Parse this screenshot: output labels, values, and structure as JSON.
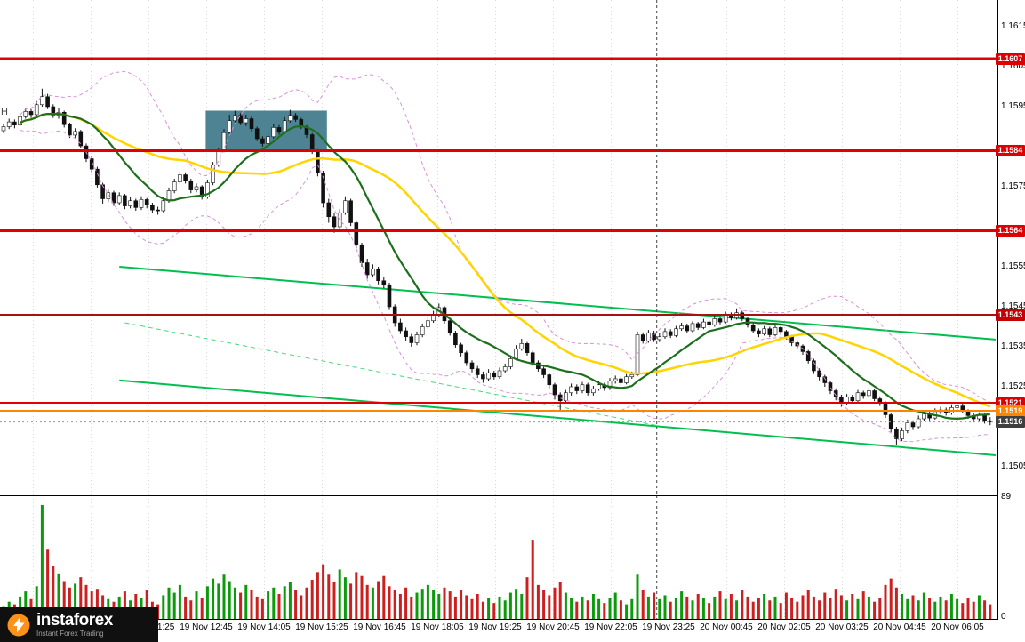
{
  "meta": {
    "corner_text": "Н"
  },
  "branding": {
    "name": "instaforex",
    "tagline": "Instant Forex Trading"
  },
  "axis": {
    "price_labels": [
      "1.1615",
      "1.1605",
      "1.1595",
      "1.1575",
      "1.1555",
      "1.1545",
      "1.1535",
      "1.1525",
      "1.1505"
    ],
    "time_labels": [
      "19 Nov 11:25",
      "19 Nov 12:45",
      "19 Nov 14:05",
      "19 Nov 15:25",
      "19 Nov 16:45",
      "19 Nov 18:05",
      "19 Nov 19:25",
      "19 Nov 20:45",
      "19 Nov 22:05",
      "19 Nov 23:25",
      "20 Nov 00:45",
      "20 Nov 02:05",
      "20 Nov 03:25",
      "20 Nov 04:45",
      "20 Nov 06:05"
    ],
    "volume_max": "89",
    "volume_min": "0"
  },
  "levels": [
    {
      "price": 1.1607,
      "label": "1.1607",
      "line_color": "#e00000",
      "line_width": 3,
      "badge_bg": "#dd0000"
    },
    {
      "price": 1.1584,
      "label": "1.1584",
      "line_color": "#e00000",
      "line_width": 3,
      "badge_bg": "#dd0000"
    },
    {
      "price": 1.1564,
      "label": "1.1564",
      "line_color": "#e00000",
      "line_width": 3,
      "badge_bg": "#dd0000"
    },
    {
      "price": 1.1543,
      "label": "1.1543",
      "line_color": "#a51212",
      "line_width": 2,
      "badge_bg": "#c40000"
    },
    {
      "price": 1.1521,
      "label": "1.1521",
      "line_color": "#e00000",
      "line_width": 2,
      "badge_bg": "#dd0000"
    },
    {
      "price": 1.1519,
      "label": "1.1519",
      "line_color": "#ff8400",
      "line_width": 2,
      "badge_bg": "#ff8400"
    },
    {
      "price": 1.15162,
      "label": "1.1516",
      "line_color": "#999999",
      "line_width": 1,
      "line_dash": "2,3",
      "badge_bg": "#3f3f3f",
      "role": "current-price-badge"
    }
  ],
  "chart_data": {
    "type": "candlestick",
    "price_base": 1.15,
    "pip_size": 0.0001,
    "y_visible_range": [
      1.1498,
      1.1622
    ],
    "day_separator_index": 118.5,
    "ohlc": [
      [
        89,
        90.8,
        88.4,
        90
      ],
      [
        90,
        92,
        89.4,
        91.2
      ],
      [
        91.2,
        91.8,
        89.6,
        90.4
      ],
      [
        90.4,
        93.2,
        90,
        92.5
      ],
      [
        92.5,
        94.6,
        92,
        93.8
      ],
      [
        93.8,
        94.4,
        92.2,
        93
      ],
      [
        93,
        96.4,
        92.6,
        95.5
      ],
      [
        95.5,
        99.5,
        95,
        97.5
      ],
      [
        97.5,
        98.2,
        94.4,
        95
      ],
      [
        95,
        95.6,
        92.2,
        92.8
      ],
      [
        92.8,
        94.6,
        92,
        93.6
      ],
      [
        93.6,
        94,
        89.8,
        90.5
      ],
      [
        90.5,
        91,
        87.2,
        87.9
      ],
      [
        87.9,
        89.6,
        87,
        88.8
      ],
      [
        88.8,
        89.2,
        84.6,
        85.2
      ],
      [
        85.2,
        85.8,
        81.2,
        82
      ],
      [
        82,
        82.6,
        78.6,
        79.4
      ],
      [
        79.4,
        80,
        74.8,
        75.5
      ],
      [
        75.5,
        76,
        70.8,
        72
      ],
      [
        72,
        74.4,
        71.2,
        73.5
      ],
      [
        73.5,
        74,
        70.2,
        71
      ],
      [
        71,
        73.6,
        70.4,
        72.8
      ],
      [
        72.8,
        73.2,
        69.4,
        70.2
      ],
      [
        70.2,
        72.4,
        69.6,
        71.5
      ],
      [
        71.5,
        72,
        69,
        69.8
      ],
      [
        69.8,
        72.6,
        69.2,
        71.8
      ],
      [
        71.8,
        72.2,
        69.6,
        70.4
      ],
      [
        70.4,
        71,
        68.4,
        69.2
      ],
      [
        69.2,
        70,
        68,
        69
      ],
      [
        69,
        72.4,
        68.6,
        71.5
      ],
      [
        71.5,
        74.8,
        71,
        74
      ],
      [
        74,
        77,
        73.4,
        76.2
      ],
      [
        76.2,
        78.8,
        75.6,
        78
      ],
      [
        78,
        78.6,
        75.8,
        76.5
      ],
      [
        76.5,
        77,
        73.4,
        74.2
      ],
      [
        74.2,
        75.8,
        73.6,
        75
      ],
      [
        75,
        75.4,
        71.8,
        72.5
      ],
      [
        72.5,
        76.8,
        72,
        76
      ],
      [
        76,
        81.2,
        75.4,
        80.5
      ],
      [
        80.5,
        84.8,
        80,
        84
      ],
      [
        84,
        89.4,
        83.6,
        88.5
      ],
      [
        88.5,
        93,
        88,
        91.5
      ],
      [
        91.5,
        94,
        91,
        92.8
      ],
      [
        92.8,
        93.4,
        90.4,
        91
      ],
      [
        91,
        93,
        90.2,
        92
      ],
      [
        92,
        92.6,
        88.8,
        89.5
      ],
      [
        89.5,
        90,
        86.4,
        87
      ],
      [
        87,
        87.6,
        85,
        85.8
      ],
      [
        85.8,
        88.4,
        85.2,
        87.5
      ],
      [
        87.5,
        90.6,
        87,
        89.8
      ],
      [
        89.8,
        90.4,
        88,
        88.6
      ],
      [
        88.6,
        92.4,
        88.2,
        91.5
      ],
      [
        91.5,
        94.2,
        91,
        92.8
      ],
      [
        92.8,
        93.4,
        91.2,
        91.8
      ],
      [
        91.8,
        92.2,
        89.4,
        90
      ],
      [
        90,
        90.4,
        87.2,
        88
      ],
      [
        88,
        88.4,
        83.2,
        84
      ],
      [
        84,
        84.4,
        77.6,
        78.5
      ],
      [
        78.5,
        79,
        69.8,
        71
      ],
      [
        71,
        72,
        66,
        67.5
      ],
      [
        67.5,
        68.5,
        63.5,
        65
      ],
      [
        65,
        69.4,
        64.4,
        68.5
      ],
      [
        68.5,
        72.6,
        68,
        71.5
      ],
      [
        71.5,
        72,
        65.2,
        66
      ],
      [
        66,
        66.6,
        59.6,
        60.5
      ],
      [
        60.5,
        61,
        55,
        56
      ],
      [
        56,
        57,
        52,
        53
      ],
      [
        53,
        55.6,
        52.4,
        54.5
      ],
      [
        54.5,
        55,
        50.6,
        51.5
      ],
      [
        51.5,
        52.4,
        49.6,
        50.5
      ],
      [
        50.5,
        51,
        44.2,
        45
      ],
      [
        45,
        45.6,
        40,
        41
      ],
      [
        41,
        42,
        38.2,
        39
      ],
      [
        39,
        39.8,
        36.4,
        37.5
      ],
      [
        37.5,
        38.2,
        35,
        36
      ],
      [
        36,
        38.8,
        35.4,
        38
      ],
      [
        38,
        40.8,
        37.4,
        40
      ],
      [
        40,
        42.4,
        39.4,
        41.5
      ],
      [
        41.5,
        44,
        41,
        43
      ],
      [
        43,
        45.8,
        42.4,
        44.8
      ],
      [
        44.8,
        45.2,
        40.8,
        41.5
      ],
      [
        41.5,
        42,
        37.8,
        38.5
      ],
      [
        38.5,
        39,
        34.8,
        35.5
      ],
      [
        35.5,
        36,
        32.6,
        33.5
      ],
      [
        33.5,
        34,
        30.2,
        31
      ],
      [
        31,
        31.6,
        28.6,
        29.5
      ],
      [
        29.5,
        30.2,
        27.2,
        28
      ],
      [
        28,
        28.8,
        26,
        27
      ],
      [
        27,
        29.4,
        26.4,
        28.5
      ],
      [
        28.5,
        29,
        26.8,
        27.5
      ],
      [
        27.5,
        29.8,
        27,
        29
      ],
      [
        29,
        30.8,
        28.4,
        30
      ],
      [
        30,
        32.8,
        29.4,
        32
      ],
      [
        32,
        35.4,
        31.6,
        34.5
      ],
      [
        34.5,
        37,
        34,
        35.8
      ],
      [
        35.8,
        36.2,
        32.8,
        33.5
      ],
      [
        33.5,
        34,
        30.2,
        31
      ],
      [
        31,
        31.6,
        28.8,
        29.5
      ],
      [
        29.5,
        30,
        27.2,
        28
      ],
      [
        28,
        28.4,
        24.6,
        25.5
      ],
      [
        25.5,
        26,
        21.8,
        23
      ],
      [
        23,
        23.6,
        19.2,
        21.5
      ],
      [
        21.5,
        24.2,
        21,
        23.5
      ],
      [
        23.5,
        25.8,
        22.8,
        25
      ],
      [
        25,
        25.6,
        23.2,
        24
      ],
      [
        24,
        26.2,
        23.4,
        25.5
      ],
      [
        25.5,
        26,
        22.8,
        23.5
      ],
      [
        23.5,
        25.2,
        22.8,
        24.5
      ],
      [
        24.5,
        26.4,
        24,
        25.5
      ],
      [
        25.5,
        26,
        24,
        24.8
      ],
      [
        24.8,
        27.2,
        24.2,
        26.5
      ],
      [
        26.5,
        27.8,
        25.8,
        27
      ],
      [
        27,
        27.6,
        25.2,
        26
      ],
      [
        26,
        28.2,
        25.6,
        27.5
      ],
      [
        27.5,
        28.8,
        27,
        28
      ],
      [
        28,
        38.8,
        27.6,
        38
      ],
      [
        38,
        38.6,
        35.8,
        36.5
      ],
      [
        36.5,
        39.2,
        36,
        38.5
      ],
      [
        38.5,
        39,
        36.2,
        36.8
      ],
      [
        36.8,
        38.4,
        36.2,
        37.5
      ],
      [
        37.5,
        39.6,
        37,
        38.8
      ],
      [
        38.8,
        39.4,
        37.2,
        37.8
      ],
      [
        37.8,
        40.2,
        37.4,
        39.5
      ],
      [
        39.5,
        41,
        39,
        40.2
      ],
      [
        40.2,
        40.8,
        38.4,
        39
      ],
      [
        39,
        41.4,
        38.6,
        40.8
      ],
      [
        40.8,
        41.2,
        39.2,
        39.8
      ],
      [
        39.8,
        42,
        39.4,
        41.2
      ],
      [
        41.2,
        41.8,
        39.8,
        40.5
      ],
      [
        40.5,
        42.8,
        40,
        42
      ],
      [
        42,
        42.6,
        40.6,
        41.2
      ],
      [
        41.2,
        43.8,
        40.8,
        43
      ],
      [
        43,
        43.6,
        41.6,
        42.2
      ],
      [
        42.2,
        44.6,
        41.8,
        43.5
      ],
      [
        43.5,
        44,
        41.4,
        42
      ],
      [
        42,
        42.4,
        39.8,
        40.5
      ],
      [
        40.5,
        41,
        38.4,
        39
      ],
      [
        39,
        39.6,
        37.4,
        38.2
      ],
      [
        38.2,
        40.2,
        37.8,
        39.5
      ],
      [
        39.5,
        40,
        37.4,
        38
      ],
      [
        38,
        40.6,
        37.6,
        39.8
      ],
      [
        39.8,
        40.2,
        38,
        38.8
      ],
      [
        38.8,
        39.2,
        36.8,
        37.5
      ],
      [
        37.5,
        38,
        35.2,
        36
      ],
      [
        36,
        36.6,
        34.4,
        35.2
      ],
      [
        35.2,
        35.6,
        33,
        33.8
      ],
      [
        33.8,
        34.2,
        30.8,
        31.5
      ],
      [
        31.5,
        32,
        28.2,
        29
      ],
      [
        29,
        29.6,
        26.6,
        27.5
      ],
      [
        27.5,
        28,
        25,
        26
      ],
      [
        26,
        26.4,
        23.2,
        24
      ],
      [
        24,
        24.6,
        21.6,
        22.5
      ],
      [
        22.5,
        23,
        20,
        21
      ],
      [
        21,
        23.2,
        20.4,
        22.5
      ],
      [
        22.5,
        23,
        20.8,
        21.5
      ],
      [
        21.5,
        24.2,
        21,
        23.5
      ],
      [
        23.5,
        24,
        22,
        22.8
      ],
      [
        22.8,
        24.8,
        22.2,
        24
      ],
      [
        24,
        24.4,
        21.4,
        22
      ],
      [
        22,
        22.6,
        20.2,
        21
      ],
      [
        21,
        21.4,
        17.2,
        18
      ],
      [
        18,
        18.4,
        13.6,
        14.5
      ],
      [
        14.5,
        15,
        10.5,
        12
      ],
      [
        12,
        14.8,
        11.4,
        14
      ],
      [
        14,
        16.8,
        13.4,
        16
      ],
      [
        16,
        16.6,
        14.2,
        15
      ],
      [
        15,
        17.8,
        14.6,
        17
      ],
      [
        17,
        19,
        16.4,
        18.2
      ],
      [
        18.2,
        18.8,
        16.6,
        17.2
      ],
      [
        17.2,
        19.6,
        16.8,
        18.8
      ],
      [
        18.8,
        20,
        18.2,
        19.2
      ],
      [
        19.2,
        19.8,
        17.8,
        18.5
      ],
      [
        18.5,
        20.6,
        18,
        19.8
      ],
      [
        19.8,
        21,
        19.2,
        20.2
      ],
      [
        20.2,
        20.8,
        18.4,
        19
      ],
      [
        19,
        19.4,
        17,
        17.8
      ],
      [
        17.8,
        18.4,
        16.2,
        17
      ],
      [
        17,
        18.6,
        16.4,
        18
      ],
      [
        18,
        18.4,
        15.8,
        16.5
      ],
      [
        16.5,
        17.4,
        15.4,
        16.2
      ]
    ],
    "volume": [
      10,
      14,
      12,
      18,
      22,
      16,
      26,
      89,
      55,
      42,
      36,
      30,
      25,
      28,
      33,
      27,
      22,
      24,
      19,
      16,
      14,
      18,
      22,
      15,
      20,
      17,
      23,
      14,
      12,
      19,
      25,
      21,
      27,
      18,
      15,
      22,
      17,
      26,
      32,
      28,
      35,
      30,
      25,
      21,
      27,
      23,
      18,
      16,
      22,
      25,
      20,
      26,
      29,
      23,
      19,
      25,
      31,
      37,
      43,
      35,
      29,
      39,
      33,
      28,
      37,
      34,
      27,
      25,
      30,
      34,
      26,
      23,
      20,
      25,
      18,
      21,
      24,
      27,
      23,
      20,
      25,
      22,
      18,
      23,
      19,
      16,
      20,
      14,
      17,
      13,
      18,
      15,
      21,
      24,
      20,
      33,
      62,
      27,
      23,
      19,
      25,
      29,
      21,
      17,
      14,
      18,
      15,
      20,
      16,
      13,
      17,
      21,
      15,
      12,
      16,
      35,
      23,
      18,
      21,
      16,
      19,
      14,
      17,
      22,
      18,
      15,
      20,
      17,
      13,
      18,
      22,
      16,
      20,
      15,
      23,
      18,
      14,
      17,
      20,
      15,
      18,
      13,
      21,
      17,
      14,
      19,
      23,
      18,
      15,
      21,
      17,
      24,
      19,
      15,
      20,
      16,
      22,
      18,
      14,
      17,
      27,
      32,
      25,
      20,
      16,
      19,
      15,
      21,
      17,
      14,
      18,
      15,
      20,
      16,
      13,
      17,
      14,
      19,
      15,
      12
    ],
    "overlays": {
      "ma_fast": {
        "period": 14,
        "color": "#1d6f1d"
      },
      "ma_slow": {
        "period": 34,
        "color": "#ffd400"
      },
      "bollinger": {
        "period": 20,
        "mult": 2,
        "color": "#d892d8"
      }
    },
    "trendlines": [
      {
        "i1": 21,
        "p1": 1.1555,
        "i2": 180,
        "p2": 1.15368,
        "color": "#00bf4f",
        "width": 2,
        "dash": null
      },
      {
        "i1": 21,
        "p1": 1.15266,
        "i2": 180,
        "p2": 1.15079,
        "color": "#00bf4f",
        "width": 2,
        "dash": null
      },
      {
        "i1": 22,
        "p1": 1.1541,
        "i2": 119,
        "p2": 1.15152,
        "color": "#44d97c",
        "width": 1,
        "dash": "5,4"
      }
    ],
    "highlight_box": {
      "i1": 37,
      "i2": 59,
      "p_top": 1.1594,
      "p_bottom": 1.15843,
      "color": "#4d8392"
    },
    "colors": {
      "candle_up": "#ffffff",
      "candle_down": "#111111",
      "candle_outline": "#111111",
      "volume_up": "#0c9a0c",
      "volume_down": "#cc2020",
      "grid": "#d9d9d9",
      "separator": "#444444"
    }
  }
}
